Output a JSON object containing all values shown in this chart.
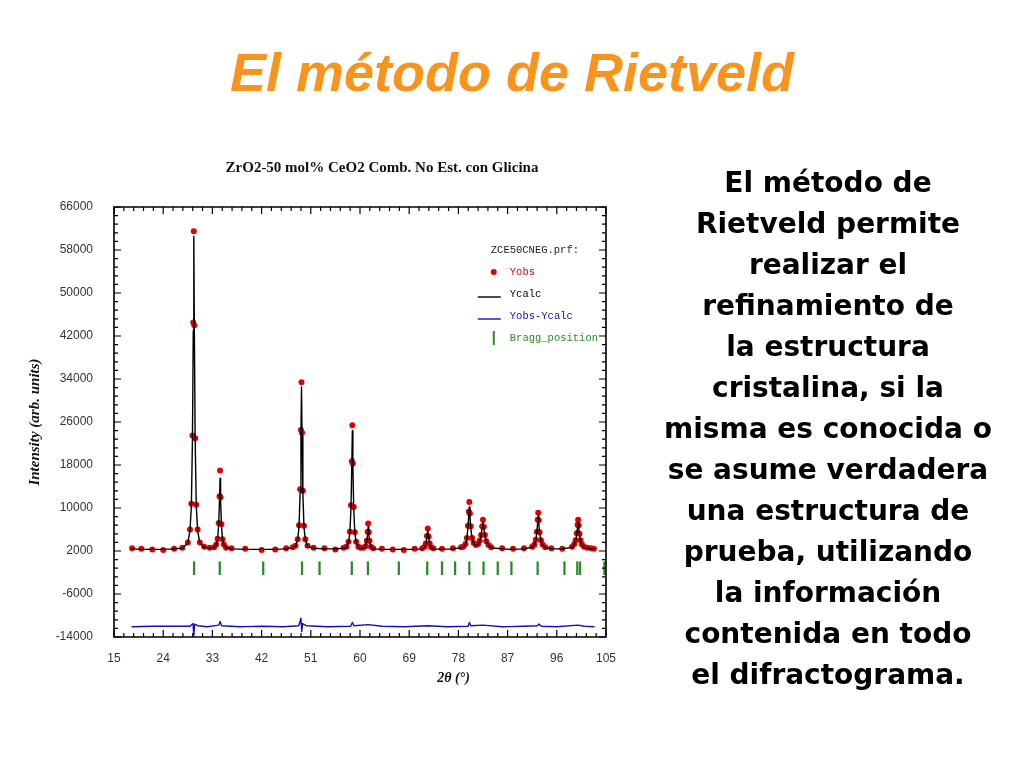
{
  "chart_data": {
    "type": "line",
    "title": "El método de Rietveld",
    "subtitle": "ZrO2-50 mol% CeO2 Comb. No Est. con Glicina",
    "xlabel": "2θ (°)",
    "ylabel": "Intensity (arb. units)",
    "legend_title": "ZCE50CNEG.prf:",
    "legend": "top right",
    "annotations": [
      "El método de\nRietveld permite\nrealizar el\nrefinamiento de\nla estructura\ncristalina, si la\nmisma es conocida o\nse asume verdadera\nuna estructura de\nprueba, utilizando\nla información\ncontenida en todo\nel difractograma."
    ],
    "xlim": [
      15,
      105
    ],
    "ylim": [
      -14000,
      66000
    ],
    "xticks": [
      15,
      {
        "value": 16.8,
        "label": null
      },
      {
        "value": 18.6,
        "label": null
      },
      {
        "value": 20.4,
        "label": null
      },
      {
        "value": 22.2,
        "label": null
      },
      24,
      {
        "value": 25.8,
        "label": null
      },
      {
        "value": 27.6,
        "label": null
      },
      {
        "value": 29.4,
        "label": null
      },
      {
        "value": 31.2,
        "label": null
      },
      33,
      {
        "value": 34.8,
        "label": null
      },
      {
        "value": 36.6,
        "label": null
      },
      {
        "value": 38.4,
        "label": null
      },
      {
        "value": 40.2,
        "label": null
      },
      42,
      {
        "value": 43.8,
        "label": null
      },
      {
        "value": 45.6,
        "label": null
      },
      {
        "value": 47.4,
        "label": null
      },
      {
        "value": 49.2,
        "label": null
      },
      51,
      {
        "value": 52.8,
        "label": null
      },
      {
        "value": 54.6,
        "label": null
      },
      {
        "value": 56.4,
        "label": null
      },
      {
        "value": 58.2,
        "label": null
      },
      60,
      {
        "value": 61.8,
        "label": null
      },
      {
        "value": 63.6,
        "label": null
      },
      {
        "value": 65.4,
        "label": null
      },
      {
        "value": 67.2,
        "label": null
      },
      69,
      {
        "value": 70.8,
        "label": null
      },
      {
        "value": 72.6,
        "label": null
      },
      {
        "value": 74.4,
        "label": null
      },
      {
        "value": 76.2,
        "label": null
      },
      78,
      {
        "value": 79.8,
        "label": null
      },
      {
        "value": 81.6,
        "label": null
      },
      {
        "value": 83.4,
        "label": null
      },
      {
        "value": 85.2,
        "label": null
      },
      87,
      {
        "value": 88.8,
        "label": null
      },
      {
        "value": 90.6,
        "label": null
      },
      {
        "value": 92.4,
        "label": null
      },
      {
        "value": 94.2,
        "label": null
      },
      96,
      {
        "value": 97.8,
        "label": null
      },
      {
        "value": 99.6,
        "label": null
      },
      {
        "value": 101.4,
        "label": null
      },
      {
        "value": 103.2,
        "label": null
      },
      105
    ],
    "yticks": [
      -14000,
      {
        "value": -12400,
        "label": null
      },
      {
        "value": -10800,
        "label": null
      },
      {
        "value": -9200,
        "label": null
      },
      {
        "value": -7600,
        "label": null
      },
      -6000,
      {
        "value": -4400,
        "label": null
      },
      {
        "value": -2800,
        "label": null
      },
      {
        "value": -1200,
        "label": null
      },
      {
        "value": 400,
        "label": null
      },
      2000,
      {
        "value": 3600,
        "label": null
      },
      {
        "value": 5200,
        "label": null
      },
      {
        "value": 6800,
        "label": null
      },
      {
        "value": 8400,
        "label": null
      },
      10000,
      {
        "value": 11600,
        "label": null
      },
      {
        "value": 13200,
        "label": null
      },
      {
        "value": 14800,
        "label": null
      },
      {
        "value": 16400,
        "label": null
      },
      18000,
      {
        "value": 19600,
        "label": null
      },
      {
        "value": 21200,
        "label": null
      },
      {
        "value": 22800,
        "label": null
      },
      {
        "value": 24400,
        "label": null
      },
      26000,
      {
        "value": 27600,
        "label": null
      },
      {
        "value": 29200,
        "label": null
      },
      {
        "value": 30800,
        "label": null
      },
      {
        "value": 32400,
        "label": null
      },
      34000,
      {
        "value": 35600,
        "label": null
      },
      {
        "value": 37200,
        "label": null
      },
      {
        "value": 38800,
        "label": null
      },
      {
        "value": 40400,
        "label": null
      },
      42000,
      {
        "value": 43600,
        "label": null
      },
      {
        "value": 45200,
        "label": null
      },
      {
        "value": 46800,
        "label": null
      },
      {
        "value": 48400,
        "label": null
      },
      50000,
      {
        "value": 51600,
        "label": null
      },
      {
        "value": 53200,
        "label": null
      },
      {
        "value": 54800,
        "label": null
      },
      {
        "value": 56400,
        "label": null
      },
      58000,
      {
        "value": 59600,
        "label": null
      },
      {
        "value": 61200,
        "label": null
      },
      {
        "value": 62800,
        "label": null
      },
      {
        "value": 64400,
        "label": null
      },
      66000
    ],
    "x": [
      18.3,
      20,
      22,
      24,
      26,
      27.5,
      28.5,
      28.9,
      29.15,
      29.35,
      29.5,
      29.6,
      29.7,
      29.85,
      30.05,
      30.3,
      30.7,
      31.5,
      32.5,
      33.3,
      33.7,
      33.95,
      34.15,
      34.3,
      34.4,
      34.5,
      34.65,
      34.85,
      35.1,
      35.5,
      36.5,
      39,
      42,
      44.5,
      46.5,
      47.7,
      48.2,
      48.6,
      48.85,
      49.05,
      49.2,
      49.3,
      49.4,
      49.55,
      49.75,
      50.0,
      50.4,
      51.5,
      53.5,
      55.5,
      57,
      57.5,
      57.9,
      58.15,
      58.35,
      58.5,
      58.6,
      58.7,
      58.85,
      59.05,
      59.3,
      59.7,
      60.1,
      60.6,
      61.0,
      61.25,
      61.4,
      61.5,
      61.6,
      61.75,
      62.0,
      62.4,
      64,
      66,
      68,
      70,
      71.4,
      71.8,
      72.05,
      72.25,
      72.4,
      72.55,
      72.75,
      73.0,
      73.4,
      75,
      77,
      78.5,
      78.9,
      79.3,
      79.55,
      79.75,
      79.9,
      80.0,
      80.1,
      80.25,
      80.5,
      80.8,
      81.2,
      81.6,
      81.9,
      82.15,
      82.35,
      82.5,
      82.65,
      82.85,
      83.1,
      83.5,
      84.0,
      86,
      88,
      90,
      91.5,
      91.9,
      92.15,
      92.35,
      92.5,
      92.6,
      92.7,
      92.85,
      93.1,
      93.4,
      93.9,
      95,
      97,
      98.8,
      99.2,
      99.45,
      99.65,
      99.8,
      99.9,
      100.0,
      100.15,
      100.35,
      100.6,
      101.0,
      101.6,
      102.3,
      102.8
    ],
    "series": [
      {
        "name": "Yobs",
        "type": "scatter",
        "marker": "circle",
        "color": "#e00000",
        "values": [
          2500,
          2400,
          2300,
          2200,
          2400,
          2600,
          3600,
          6000,
          10800,
          23500,
          44500,
          61500,
          44000,
          23000,
          10600,
          6000,
          3600,
          2800,
          2600,
          2700,
          3200,
          4300,
          7200,
          12200,
          17000,
          12000,
          7000,
          4200,
          3200,
          2600,
          2500,
          2400,
          2200,
          2300,
          2500,
          2700,
          3000,
          4200,
          6800,
          13500,
          24500,
          33400,
          24000,
          13200,
          6700,
          4200,
          3000,
          2600,
          2500,
          2300,
          2600,
          2800,
          3700,
          5600,
          10500,
          18700,
          25400,
          18300,
          10200,
          5500,
          3700,
          2800,
          2600,
          2600,
          2900,
          3900,
          5600,
          7100,
          5500,
          3900,
          2800,
          2500,
          2400,
          2300,
          2200,
          2400,
          2500,
          2800,
          3400,
          4800,
          6200,
          4700,
          3400,
          2700,
          2500,
          2400,
          2500,
          2700,
          2800,
          3300,
          4400,
          6700,
          9300,
          11100,
          9000,
          6600,
          4400,
          3500,
          3100,
          3300,
          3900,
          5000,
          6600,
          7800,
          6500,
          5000,
          3800,
          3100,
          2700,
          2500,
          2400,
          2500,
          2800,
          3200,
          4100,
          5600,
          7800,
          9100,
          7700,
          5500,
          4000,
          3200,
          2700,
          2500,
          2400,
          2800,
          3300,
          4000,
          5300,
          6900,
          7800,
          6800,
          5200,
          4000,
          3200,
          2800,
          2600,
          2500,
          2400
        ]
      },
      {
        "name": "Ycalc",
        "marker": "none",
        "color": "#000000",
        "values": [
          2400,
          2300,
          2300,
          2300,
          2400,
          2500,
          3500,
          5800,
          10400,
          22700,
          43000,
          60500,
          43000,
          22700,
          10400,
          5800,
          3500,
          2700,
          2500,
          2600,
          3100,
          4200,
          6900,
          11500,
          15500,
          11500,
          6900,
          4100,
          3100,
          2600,
          2400,
          2300,
          2300,
          2300,
          2400,
          2600,
          2900,
          4100,
          6500,
          12900,
          23400,
          32500,
          23400,
          12900,
          6500,
          4100,
          2900,
          2500,
          2400,
          2400,
          2500,
          2700,
          3600,
          5400,
          10000,
          17800,
          24400,
          17800,
          10000,
          5400,
          3600,
          2700,
          2500,
          2500,
          2800,
          3800,
          5300,
          6500,
          5300,
          3800,
          2800,
          2400,
          2300,
          2300,
          2300,
          2300,
          2400,
          2700,
          3300,
          4600,
          6000,
          4600,
          3300,
          2700,
          2400,
          2300,
          2400,
          2600,
          2700,
          3200,
          4300,
          6400,
          8600,
          10200,
          8600,
          6400,
          4300,
          3400,
          3000,
          3200,
          3800,
          4900,
          6300,
          7400,
          6300,
          4900,
          3800,
          3000,
          2600,
          2400,
          2300,
          2400,
          2700,
          3100,
          4000,
          5400,
          7300,
          8600,
          7300,
          5400,
          4000,
          3100,
          2600,
          2400,
          2400,
          2700,
          3200,
          3900,
          5100,
          6500,
          7400,
          6500,
          5100,
          3900,
          3100,
          2700,
          2500,
          2400,
          2400
        ]
      },
      {
        "name": "Yobs-Ycalc",
        "marker": "none",
        "color": "#1010c0",
        "x": [
          18.3,
          22,
          26,
          28.9,
          29.45,
          29.6,
          29.75,
          30.3,
          32,
          34.2,
          34.4,
          34.7,
          38,
          42,
          46,
          48.8,
          49.2,
          49.35,
          49.5,
          50.2,
          54,
          58.3,
          58.6,
          58.9,
          61.5,
          64,
          68,
          72.4,
          76,
          79.8,
          80.0,
          80.3,
          82.5,
          86,
          90,
          92.5,
          92.7,
          93.2,
          96,
          99.9,
          101,
          102.8
        ],
        "values": [
          -12100,
          -12000,
          -12000,
          -12000,
          -11500,
          -13700,
          -11600,
          -11900,
          -12100,
          -11800,
          -11100,
          -11900,
          -12100,
          -12000,
          -12100,
          -11900,
          -10500,
          -13000,
          -11500,
          -11900,
          -12100,
          -12000,
          -11300,
          -11900,
          -11700,
          -12000,
          -12100,
          -11900,
          -12100,
          -12000,
          -11300,
          -11900,
          -11800,
          -12100,
          -12000,
          -11900,
          -11600,
          -12000,
          -12100,
          -11800,
          -12000,
          -12100
        ]
      },
      {
        "name": "Bragg_position",
        "type": "bar",
        "color": "#2a8a2a",
        "x": [
          29.65,
          34.35,
          42.3,
          49.4,
          52.6,
          58.5,
          61.45,
          67.1,
          72.3,
          75.0,
          77.4,
          80.0,
          82.6,
          85.2,
          87.7,
          92.5,
          97.4,
          99.75,
          100.25,
          104.7
        ],
        "base": [
          -2400,
          -2400,
          -2400,
          -2400,
          -2400,
          -2400,
          -2400,
          -2400,
          -2400,
          -2400,
          -2400,
          -2400,
          -2400,
          -2400,
          -2400,
          -2400,
          -2400,
          -2400,
          -2400,
          -2400
        ],
        "values": [
          2400,
          2400,
          2400,
          2400,
          2400,
          2400,
          2400,
          2400,
          2400,
          2400,
          2400,
          2400,
          2400,
          2400,
          2400,
          2400,
          2400,
          2400,
          2400,
          2400
        ]
      }
    ]
  }
}
